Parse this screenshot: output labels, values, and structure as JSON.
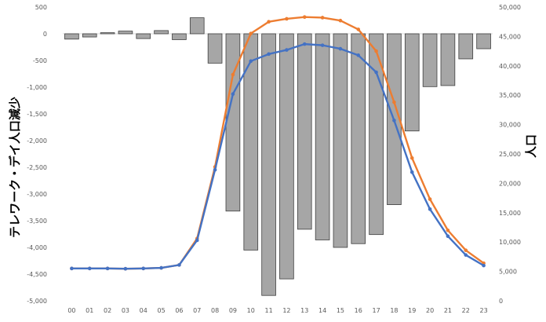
{
  "chart_data": {
    "type": "bar+line",
    "title": "",
    "xlabel": "",
    "ylabel": "テレワーク・デイ人口減少",
    "y2label": "人口",
    "categories": [
      "00",
      "01",
      "02",
      "03",
      "04",
      "05",
      "06",
      "07",
      "08",
      "09",
      "10",
      "11",
      "12",
      "13",
      "14",
      "15",
      "16",
      "17",
      "18",
      "19",
      "20",
      "21",
      "22",
      "23"
    ],
    "ylim": [
      -5000,
      500
    ],
    "yticks": [
      500,
      0,
      -500,
      -1000,
      -1500,
      -2000,
      -2500,
      -3000,
      -3500,
      -4000,
      -4500,
      -5000
    ],
    "ytick_labels": [
      "500",
      "0",
      "-500",
      "-1,000",
      "-1,500",
      "-2,000",
      "-2,500",
      "-3,000",
      "-3,500",
      "-4,000",
      "-4,500",
      "-5,000"
    ],
    "y2lim": [
      0,
      50000
    ],
    "y2ticks": [
      50000,
      45000,
      40000,
      35000,
      30000,
      25000,
      20000,
      15000,
      10000,
      5000,
      0
    ],
    "y2tick_labels": [
      "50,000",
      "45,000",
      "40,000",
      "35,000",
      "30,000",
      "25,000",
      "20,000",
      "15,000",
      "10,000",
      "5,000",
      "0"
    ],
    "grid": false,
    "legend": "none",
    "series": [
      {
        "type": "bar",
        "axis": "left",
        "color": "#a6a6a6",
        "values": [
          -100,
          -60,
          20,
          50,
          -90,
          60,
          -110,
          300,
          -550,
          -3320,
          -4050,
          -4900,
          -4590,
          -3660,
          -3860,
          -4000,
          -3930,
          -3760,
          -3200,
          -1820,
          -990,
          -970,
          -470,
          -280
        ]
      },
      {
        "type": "line",
        "axis": "right",
        "color": "#ed7d31",
        "values": [
          5500,
          5500,
          5500,
          5450,
          5500,
          5600,
          6100,
          10600,
          22800,
          38500,
          45500,
          47500,
          48000,
          48300,
          48200,
          47700,
          46200,
          42500,
          33800,
          24300,
          17300,
          12000,
          8600,
          6400
        ]
      },
      {
        "type": "line",
        "axis": "right",
        "color": "#4472c4",
        "values": [
          5500,
          5500,
          5500,
          5450,
          5500,
          5600,
          6100,
          10300,
          22300,
          35200,
          40800,
          42000,
          42700,
          43700,
          43500,
          42900,
          41800,
          38900,
          30700,
          21900,
          15600,
          11000,
          7800,
          6000
        ]
      }
    ]
  }
}
